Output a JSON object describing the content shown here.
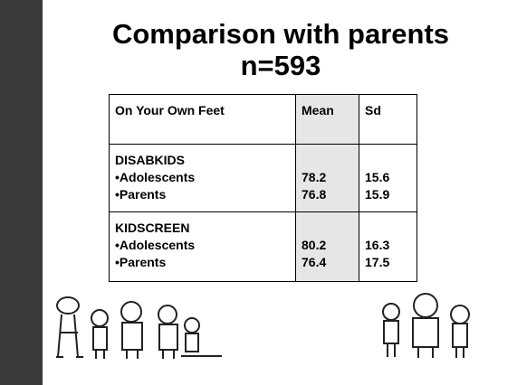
{
  "header": {
    "title": "Comparison with parents",
    "subtitle": "n=593"
  },
  "table": {
    "columns": [
      "On Your Own Feet",
      "Mean",
      "Sd"
    ],
    "groups": [
      {
        "name": "DISABKIDS",
        "rows": [
          {
            "label": "•Adolescents",
            "mean": "78.2",
            "sd": "15.6"
          },
          {
            "label": "•Parents",
            "mean": "76.8",
            "sd": "15.9"
          }
        ]
      },
      {
        "name": "KIDSCREEN",
        "rows": [
          {
            "label": "•Adolescents",
            "mean": "80.2",
            "sd": "16.3"
          },
          {
            "label": "•Parents",
            "mean": "76.4",
            "sd": "17.5"
          }
        ]
      }
    ]
  }
}
